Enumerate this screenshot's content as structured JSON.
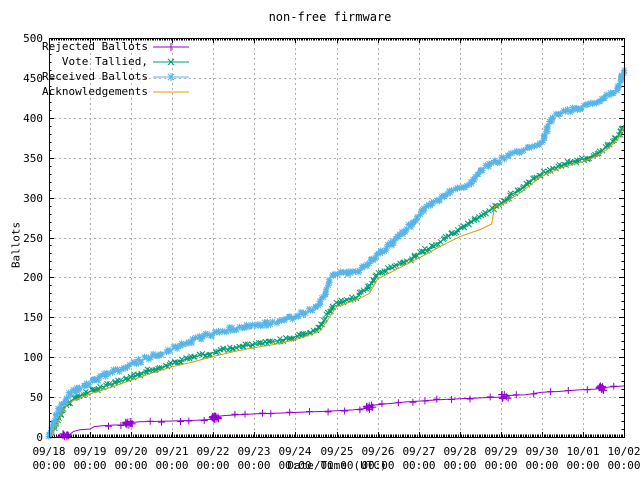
{
  "bg_color": "#ffffff",
  "axis_color": "#000000",
  "grid_color": "#b0b0b0",
  "chart_data": {
    "type": "line",
    "title": "non-free firmware",
    "xlabel": "Date/Time (UTC)",
    "ylabel": "Ballots",
    "grid": true,
    "legend_position": "top-left",
    "ylim": [
      0,
      500
    ],
    "y_ticks": [
      0,
      50,
      100,
      150,
      200,
      250,
      300,
      350,
      400,
      450,
      500
    ],
    "x_range_days": 14,
    "x_ticks": [
      "09/18",
      "09/19",
      "09/20",
      "09/21",
      "09/22",
      "09/23",
      "09/24",
      "09/25",
      "09/26",
      "09/27",
      "09/28",
      "09/29",
      "09/30",
      "10/01",
      "10/02"
    ],
    "x_tick_sub": "00:00",
    "series": [
      {
        "name": "Rejected Ballots",
        "color": "#9400d3",
        "marker": "plus",
        "points": [
          [
            0.17,
            0
          ],
          [
            0.3,
            1
          ],
          [
            0.5,
            3
          ],
          [
            0.6,
            7
          ],
          [
            0.75,
            9
          ],
          [
            1.0,
            10
          ],
          [
            1.1,
            13
          ],
          [
            1.3,
            14
          ],
          [
            1.6,
            15
          ],
          [
            1.9,
            15
          ],
          [
            2.0,
            18
          ],
          [
            2.2,
            19
          ],
          [
            3.0,
            20
          ],
          [
            3.6,
            21
          ],
          [
            3.95,
            22
          ],
          [
            4.1,
            26
          ],
          [
            4.3,
            27
          ],
          [
            5.0,
            29
          ],
          [
            5.6,
            30
          ],
          [
            6.1,
            31
          ],
          [
            6.6,
            32
          ],
          [
            7.0,
            33
          ],
          [
            7.4,
            34
          ],
          [
            7.75,
            36
          ],
          [
            7.9,
            40
          ],
          [
            8.3,
            42
          ],
          [
            8.7,
            44
          ],
          [
            9.0,
            45
          ],
          [
            9.3,
            46
          ],
          [
            9.6,
            47
          ],
          [
            10.0,
            48
          ],
          [
            10.5,
            49
          ],
          [
            11.0,
            50
          ],
          [
            11.15,
            52
          ],
          [
            11.6,
            53
          ],
          [
            12.0,
            56
          ],
          [
            12.4,
            57
          ],
          [
            12.9,
            59
          ],
          [
            13.3,
            60
          ],
          [
            13.5,
            62
          ],
          [
            14.0,
            64
          ]
        ],
        "clusters": [
          [
            0.4,
            10
          ],
          [
            1.95,
            12
          ],
          [
            4.05,
            14
          ],
          [
            7.8,
            10
          ],
          [
            11.1,
            8
          ],
          [
            13.45,
            12
          ]
        ]
      },
      {
        "name": "Vote Tallied,",
        "color": "#009e73",
        "marker": "cross",
        "points": [
          [
            0,
            0
          ],
          [
            0.1,
            8
          ],
          [
            0.25,
            25
          ],
          [
            0.4,
            38
          ],
          [
            0.55,
            46
          ],
          [
            0.8,
            52
          ],
          [
            1.0,
            57
          ],
          [
            1.3,
            63
          ],
          [
            1.5,
            66
          ],
          [
            1.8,
            71
          ],
          [
            2.0,
            75
          ],
          [
            2.3,
            81
          ],
          [
            2.5,
            84
          ],
          [
            2.8,
            88
          ],
          [
            3.0,
            92
          ],
          [
            3.3,
            97
          ],
          [
            3.6,
            101
          ],
          [
            4.0,
            106
          ],
          [
            4.3,
            110
          ],
          [
            4.6,
            113
          ],
          [
            5.0,
            116
          ],
          [
            5.5,
            120
          ],
          [
            5.8,
            123
          ],
          [
            6.0,
            126
          ],
          [
            6.3,
            130
          ],
          [
            6.55,
            134
          ],
          [
            6.75,
            150
          ],
          [
            6.95,
            166
          ],
          [
            7.0,
            168
          ],
          [
            7.3,
            172
          ],
          [
            7.5,
            176
          ],
          [
            7.7,
            184
          ],
          [
            8.0,
            203
          ],
          [
            8.3,
            211
          ],
          [
            8.5,
            216
          ],
          [
            8.75,
            222
          ],
          [
            9.0,
            229
          ],
          [
            9.3,
            238
          ],
          [
            9.5,
            244
          ],
          [
            9.75,
            252
          ],
          [
            10.0,
            260
          ],
          [
            10.3,
            270
          ],
          [
            10.5,
            277
          ],
          [
            10.75,
            284
          ],
          [
            11.0,
            293
          ],
          [
            11.3,
            305
          ],
          [
            11.5,
            311
          ],
          [
            11.75,
            322
          ],
          [
            12.0,
            330
          ],
          [
            12.3,
            337
          ],
          [
            12.5,
            341
          ],
          [
            12.75,
            345
          ],
          [
            13.0,
            348
          ],
          [
            13.2,
            352
          ],
          [
            13.5,
            360
          ],
          [
            13.7,
            368
          ],
          [
            13.85,
            376
          ],
          [
            14.0,
            391
          ]
        ],
        "clusters": []
      },
      {
        "name": "Received Ballots",
        "color": "#56b4e9",
        "marker": "star",
        "points": [
          [
            0,
            0
          ],
          [
            0.08,
            12
          ],
          [
            0.2,
            30
          ],
          [
            0.35,
            45
          ],
          [
            0.55,
            56
          ],
          [
            0.8,
            62
          ],
          [
            1.0,
            68
          ],
          [
            1.3,
            76
          ],
          [
            1.5,
            80
          ],
          [
            1.8,
            86
          ],
          [
            2.0,
            90
          ],
          [
            2.3,
            97
          ],
          [
            2.5,
            101
          ],
          [
            2.8,
            106
          ],
          [
            3.0,
            110
          ],
          [
            3.3,
            117
          ],
          [
            3.6,
            123
          ],
          [
            4.0,
            130
          ],
          [
            4.3,
            134
          ],
          [
            4.6,
            137
          ],
          [
            5.0,
            140
          ],
          [
            5.5,
            143
          ],
          [
            5.8,
            147
          ],
          [
            6.0,
            152
          ],
          [
            6.3,
            157
          ],
          [
            6.55,
            162
          ],
          [
            6.7,
            178
          ],
          [
            6.85,
            200
          ],
          [
            7.0,
            205
          ],
          [
            7.45,
            206
          ],
          [
            7.7,
            213
          ],
          [
            8.0,
            228
          ],
          [
            8.3,
            240
          ],
          [
            8.5,
            250
          ],
          [
            8.75,
            262
          ],
          [
            9.0,
            278
          ],
          [
            9.2,
            288
          ],
          [
            9.45,
            296
          ],
          [
            9.7,
            303
          ],
          [
            9.85,
            310
          ],
          [
            10.0,
            313
          ],
          [
            10.2,
            315
          ],
          [
            10.4,
            327
          ],
          [
            10.6,
            337
          ],
          [
            10.8,
            343
          ],
          [
            11.0,
            347
          ],
          [
            11.3,
            355
          ],
          [
            11.6,
            360
          ],
          [
            11.8,
            363
          ],
          [
            12.0,
            368
          ],
          [
            12.15,
            390
          ],
          [
            12.3,
            403
          ],
          [
            12.6,
            408
          ],
          [
            13.0,
            414
          ],
          [
            13.3,
            420
          ],
          [
            13.6,
            428
          ],
          [
            13.8,
            433
          ],
          [
            13.9,
            444
          ],
          [
            14.0,
            462
          ]
        ],
        "clusters": []
      },
      {
        "name": "Acknowledgements",
        "color": "#dd9c00",
        "marker": "none",
        "points": [
          [
            0.05,
            0
          ],
          [
            0.15,
            10
          ],
          [
            0.3,
            28
          ],
          [
            0.45,
            41
          ],
          [
            0.6,
            46
          ],
          [
            0.8,
            50
          ],
          [
            1.0,
            54
          ],
          [
            1.5,
            62
          ],
          [
            2.0,
            71
          ],
          [
            2.5,
            80
          ],
          [
            3.0,
            88
          ],
          [
            3.5,
            94
          ],
          [
            4.0,
            101
          ],
          [
            4.5,
            107
          ],
          [
            5.0,
            112
          ],
          [
            5.5,
            116
          ],
          [
            6.0,
            122
          ],
          [
            6.3,
            127
          ],
          [
            6.6,
            133
          ],
          [
            6.8,
            148
          ],
          [
            7.0,
            163
          ],
          [
            7.5,
            172
          ],
          [
            7.8,
            180
          ],
          [
            8.0,
            198
          ],
          [
            8.5,
            211
          ],
          [
            9.0,
            224
          ],
          [
            9.5,
            238
          ],
          [
            10.0,
            251
          ],
          [
            10.5,
            260
          ],
          [
            10.78,
            267
          ],
          [
            10.85,
            289
          ],
          [
            11.0,
            290
          ],
          [
            11.5,
            307
          ],
          [
            12.0,
            327
          ],
          [
            12.5,
            338
          ],
          [
            13.0,
            345
          ],
          [
            13.3,
            351
          ],
          [
            13.6,
            361
          ],
          [
            13.85,
            373
          ],
          [
            14.0,
            388
          ]
        ],
        "clusters": []
      }
    ]
  }
}
